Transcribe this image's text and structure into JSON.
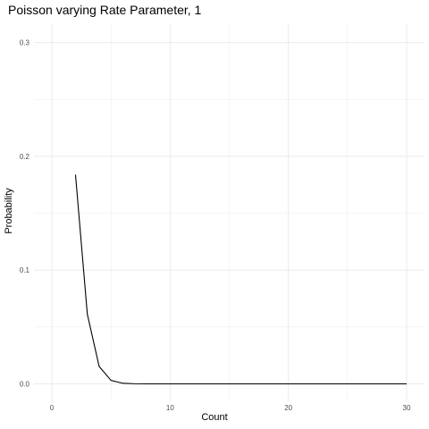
{
  "chart_data": {
    "type": "line",
    "title": "Poisson varying Rate Parameter, 1",
    "xlabel": "Count",
    "ylabel": "Probability",
    "xlim": [
      0,
      30
    ],
    "ylim": [
      0,
      0.3
    ],
    "x_ticks": [
      0,
      10,
      20,
      30
    ],
    "y_ticks": [
      0.0,
      0.1,
      0.2,
      0.3
    ],
    "x_tick_labels": [
      "0",
      "10",
      "20",
      "30"
    ],
    "y_tick_labels": [
      "0.0",
      "0.1",
      "0.2",
      "0.3"
    ],
    "grid": true,
    "background": "#ffffff",
    "grid_color": "#ebebeb",
    "line_color": "#000000",
    "series": [
      {
        "x": [
          2,
          3,
          4,
          5,
          6,
          7,
          8,
          9,
          10,
          11,
          12,
          13,
          14,
          15,
          16,
          17,
          18,
          19,
          20,
          21,
          22,
          23,
          24,
          25,
          26,
          27,
          28,
          29,
          30
        ],
        "values": [
          0.1839,
          0.0613,
          0.0153,
          0.0031,
          0.0005,
          0.0001,
          0.0,
          0.0,
          0.0,
          0.0,
          0.0,
          0.0,
          0.0,
          0.0,
          0.0,
          0.0,
          0.0,
          0.0,
          0.0,
          0.0,
          0.0,
          0.0,
          0.0,
          0.0,
          0.0,
          0.0,
          0.0,
          0.0,
          0.0
        ]
      }
    ]
  }
}
